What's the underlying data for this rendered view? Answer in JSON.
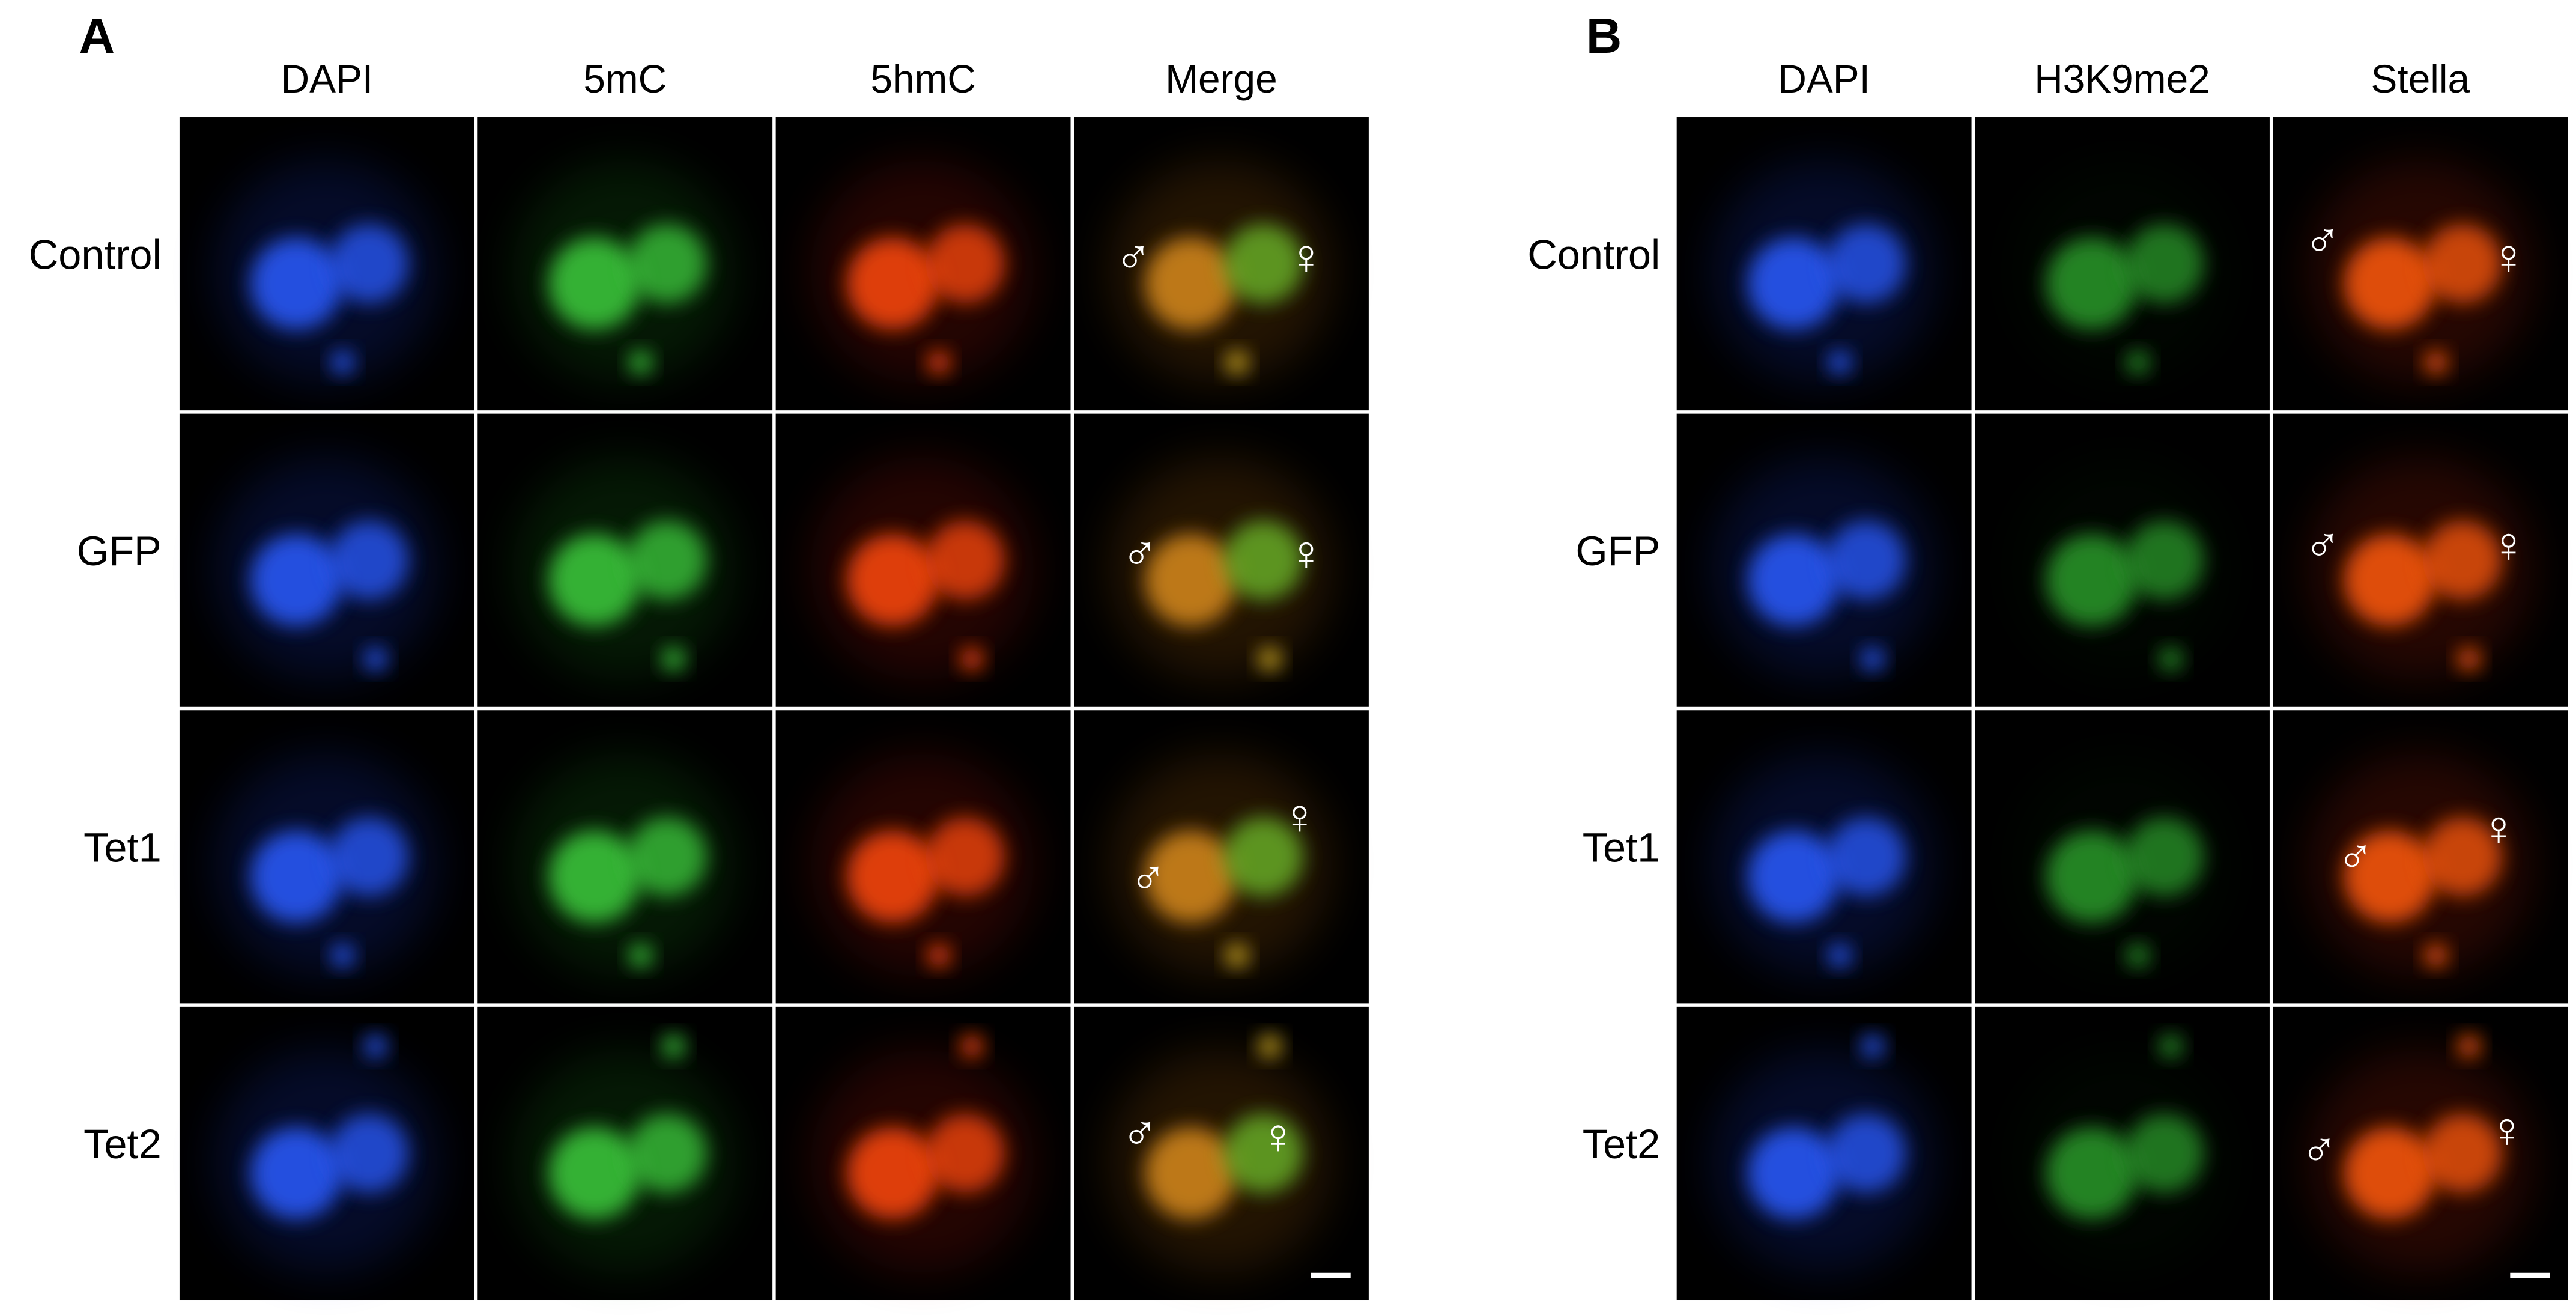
{
  "panels": [
    {
      "label": "A",
      "columns": [
        "DAPI",
        "5mC",
        "5hmC",
        "Merge"
      ],
      "rows": [
        "Control",
        "GFP",
        "Tet1",
        "Tet2"
      ]
    },
    {
      "label": "B",
      "columns": [
        "DAPI",
        "H3K9me2",
        "Stella"
      ],
      "rows": [
        "Control",
        "GFP",
        "Tet1",
        "Tet2"
      ]
    }
  ],
  "symbols": {
    "male": "♂",
    "female": "♀"
  }
}
